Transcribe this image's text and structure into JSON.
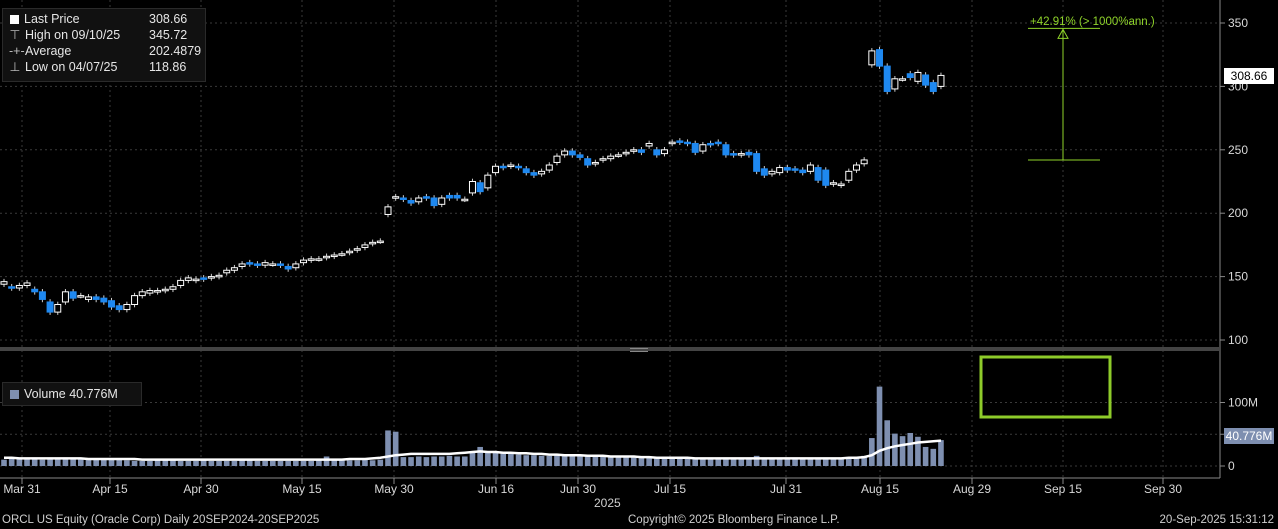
{
  "legend": {
    "last_label": "Last Price",
    "last_value": "308.66",
    "high_label": "High on 09/10/25",
    "high_value": "345.72",
    "avg_label": "Average",
    "avg_value": "202.4879",
    "low_label": "Low on 04/07/25",
    "low_value": "118.86"
  },
  "volume_legend": {
    "label": "Volume",
    "value": "40.776M"
  },
  "annotation": {
    "text": "+42.91% (> 1000%ann.)"
  },
  "tags": {
    "price": "308.66",
    "volume": "40.776M"
  },
  "footer": {
    "left": "ORCL US Equity (Oracle Corp)  Daily 20SEP2024-20SEP2025",
    "center": "Copyright© 2025 Bloomberg Finance L.P.",
    "right": "20-Sep-2025 15:31:12"
  },
  "colors": {
    "up": "#ffffff",
    "down": "#1e88f0",
    "volume": "#7e8fb0",
    "avg_line": "#ffffff",
    "annotation": "#8fd42a",
    "highlight_box": "#8ecb2a"
  },
  "chart_data": [
    {
      "type": "candlestick",
      "yticks": [
        100,
        150,
        200,
        250,
        300,
        350
      ],
      "ylim": [
        95,
        362
      ],
      "xticks": [
        "Mar 31",
        "Apr 15",
        "Apr 30",
        "May 15",
        "May 30",
        "Jun 16",
        "Jun 30",
        "Jul 15",
        "Jul 31",
        "Aug 15",
        "Aug 29",
        "Sep 15",
        "Sep 30"
      ],
      "xlabel_year": "2025",
      "series_close": [
        146,
        141,
        143,
        145,
        138,
        132,
        122,
        128,
        138,
        133,
        135,
        134,
        132,
        130,
        126,
        124,
        128,
        135,
        138,
        139,
        139,
        140,
        142,
        147,
        149,
        148,
        148,
        150,
        151,
        155,
        157,
        160,
        160,
        159,
        161,
        160,
        159,
        156,
        160,
        163,
        164,
        164,
        166,
        167,
        168,
        170,
        172,
        175,
        177,
        178,
        205,
        213,
        211,
        208,
        212,
        212,
        206,
        212,
        212,
        212,
        211,
        225,
        217,
        230,
        237,
        236,
        238,
        236,
        232,
        230,
        233,
        238,
        245,
        249,
        246,
        244,
        238,
        240,
        243,
        245,
        246,
        248,
        250,
        248,
        255,
        246,
        250,
        256,
        256,
        255,
        248,
        254,
        254,
        255,
        246,
        246,
        247,
        246,
        233,
        230,
        233,
        236,
        234,
        234,
        232,
        238,
        226,
        222,
        224,
        223,
        233,
        238,
        242,
        328,
        316,
        296,
        306,
        306,
        307,
        311,
        301,
        296,
        308.66
      ],
      "series_open": [
        144,
        142,
        141,
        143,
        140,
        138,
        130,
        122,
        130,
        138,
        135,
        132,
        134,
        133,
        131,
        127,
        124,
        128,
        135,
        137,
        138,
        139,
        140,
        143,
        147,
        147,
        149,
        149,
        150,
        153,
        155,
        158,
        161,
        160,
        159,
        160,
        160,
        158,
        157,
        161,
        163,
        164,
        165,
        166,
        168,
        169,
        171,
        173,
        176,
        178,
        199,
        212,
        212,
        210,
        209,
        213,
        212,
        207,
        214,
        214,
        211,
        216,
        224,
        220,
        232,
        237,
        237,
        237,
        235,
        232,
        231,
        234,
        240,
        246,
        249,
        246,
        243,
        239,
        242,
        243,
        246,
        247,
        249,
        250,
        253,
        250,
        247,
        255,
        257,
        256,
        255,
        249,
        255,
        256,
        254,
        247,
        246,
        248,
        247,
        235,
        231,
        232,
        236,
        235,
        234,
        233,
        236,
        234,
        223,
        222,
        226,
        234,
        239,
        317,
        329,
        316,
        298,
        306,
        310,
        304,
        309,
        303,
        300
      ],
      "volume_millions": [
        10,
        13,
        12,
        12,
        11,
        10,
        12,
        12,
        12,
        11,
        11,
        10,
        10,
        10,
        10,
        10,
        9,
        8,
        8,
        8,
        9,
        9,
        9,
        8,
        8,
        8,
        9,
        8,
        8,
        8,
        8,
        9,
        9,
        8,
        8,
        8,
        8,
        8,
        8,
        8,
        8,
        9,
        15,
        10,
        10,
        9,
        9,
        10,
        9,
        10,
        56,
        54,
        14,
        14,
        15,
        14,
        15,
        15,
        16,
        15,
        15,
        22,
        30,
        22,
        21,
        20,
        19,
        18,
        17,
        17,
        16,
        16,
        19,
        18,
        17,
        17,
        16,
        15,
        15,
        15,
        14,
        14,
        14,
        14,
        14,
        14,
        13,
        12,
        12,
        12,
        12,
        12,
        12,
        12,
        12,
        12,
        11,
        12,
        16,
        12,
        11,
        11,
        11,
        11,
        11,
        11,
        11,
        13,
        12,
        12,
        12,
        13,
        16,
        44,
        125,
        72,
        51,
        47,
        52,
        46,
        30,
        27,
        40.776
      ],
      "volume_avg_millions": [
        13,
        13,
        12,
        12,
        12,
        12,
        12,
        12,
        12,
        12,
        12,
        11,
        11,
        11,
        11,
        11,
        11,
        11,
        10,
        10,
        10,
        10,
        10,
        10,
        10,
        10,
        10,
        10,
        10,
        10,
        10,
        10,
        10,
        10,
        10,
        10,
        10,
        10,
        10,
        10,
        10,
        10,
        10,
        10,
        10,
        11,
        11,
        11,
        12,
        13,
        15,
        17,
        18,
        19,
        19,
        19,
        19,
        19,
        19,
        20,
        21,
        22,
        23,
        22,
        22,
        21,
        21,
        20,
        20,
        19,
        19,
        18,
        18,
        17,
        17,
        17,
        16,
        16,
        16,
        15,
        15,
        15,
        15,
        14,
        14,
        13,
        13,
        13,
        13,
        13,
        12,
        12,
        12,
        12,
        12,
        12,
        12,
        12,
        12,
        12,
        12,
        12,
        12,
        12,
        12,
        12,
        12,
        12,
        12,
        12,
        13,
        13,
        14,
        17,
        24,
        28,
        31,
        33,
        35,
        37,
        38,
        39,
        40
      ],
      "volume_yticks": [
        0,
        50,
        100
      ],
      "volume_ylabels": [
        "0",
        "50M",
        "100M"
      ],
      "volume_ylim": [
        0,
        130
      ]
    }
  ]
}
